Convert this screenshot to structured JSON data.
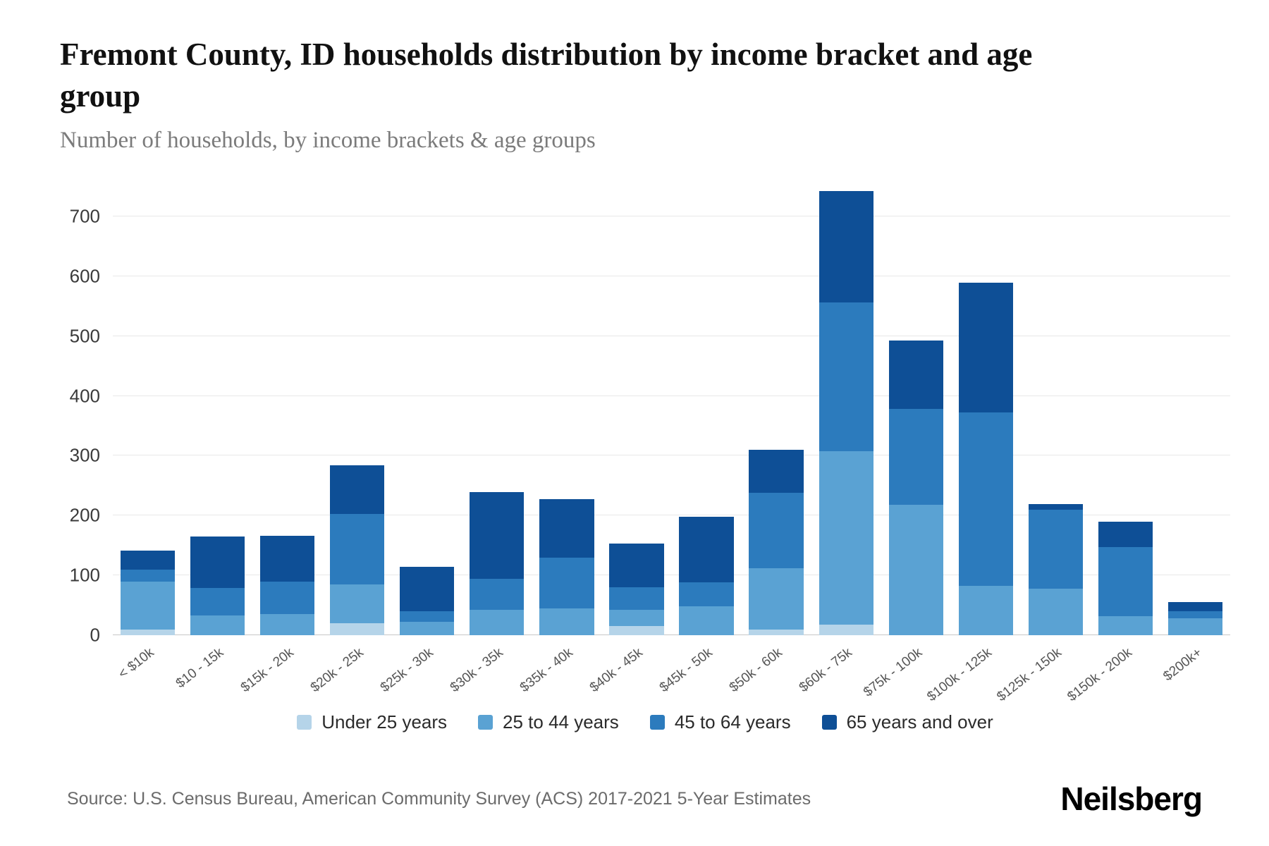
{
  "header": {
    "title": "Fremont County, ID households distribution by income bracket and age group",
    "subtitle": "Number of households, by income brackets & age groups"
  },
  "footer": {
    "source": "Source: U.S. Census Bureau, American Community Survey (ACS) 2017-2021 5-Year Estimates",
    "brand": "Neilsberg"
  },
  "chart_data": {
    "type": "bar",
    "stacked": true,
    "title": "Fremont County, ID households distribution by income bracket and age group",
    "subtitle": "Number of households, by income brackets & age groups",
    "xlabel": "",
    "ylabel": "Number of households",
    "grid": true,
    "legend_position": "bottom",
    "ylim": [
      0,
      760
    ],
    "yticks": [
      0,
      100,
      200,
      300,
      400,
      500,
      600,
      700
    ],
    "categories": [
      "< $10k",
      "$10 - 15k",
      "$15k - 20k",
      "$20k - 25k",
      "$25k - 30k",
      "$30k - 35k",
      "$35k - 40k",
      "$40k - 45k",
      "$45k - 50k",
      "$50k - 60k",
      "$60k - 75k",
      "$75k - 100k",
      "$100k - 125k",
      "$125k - 150k",
      "$150k - 200k",
      "$200k+"
    ],
    "series": [
      {
        "name": "Under 25 years",
        "color": "#b5d4e9",
        "values": [
          10,
          0,
          0,
          20,
          0,
          0,
          0,
          15,
          0,
          10,
          18,
          0,
          0,
          0,
          0,
          0
        ]
      },
      {
        "name": "25 to 44 years",
        "color": "#5aa2d3",
        "values": [
          80,
          33,
          35,
          65,
          22,
          42,
          45,
          27,
          48,
          102,
          289,
          218,
          83,
          78,
          32,
          28
        ]
      },
      {
        "name": "45 to 64 years",
        "color": "#2c7bbd",
        "values": [
          20,
          46,
          55,
          118,
          18,
          52,
          85,
          38,
          40,
          126,
          249,
          160,
          289,
          132,
          115,
          12
        ]
      },
      {
        "name": "65 years and over",
        "color": "#0e4f96",
        "values": [
          32,
          86,
          76,
          81,
          74,
          145,
          98,
          73,
          110,
          72,
          186,
          114,
          217,
          9,
          43,
          15
        ]
      }
    ]
  }
}
